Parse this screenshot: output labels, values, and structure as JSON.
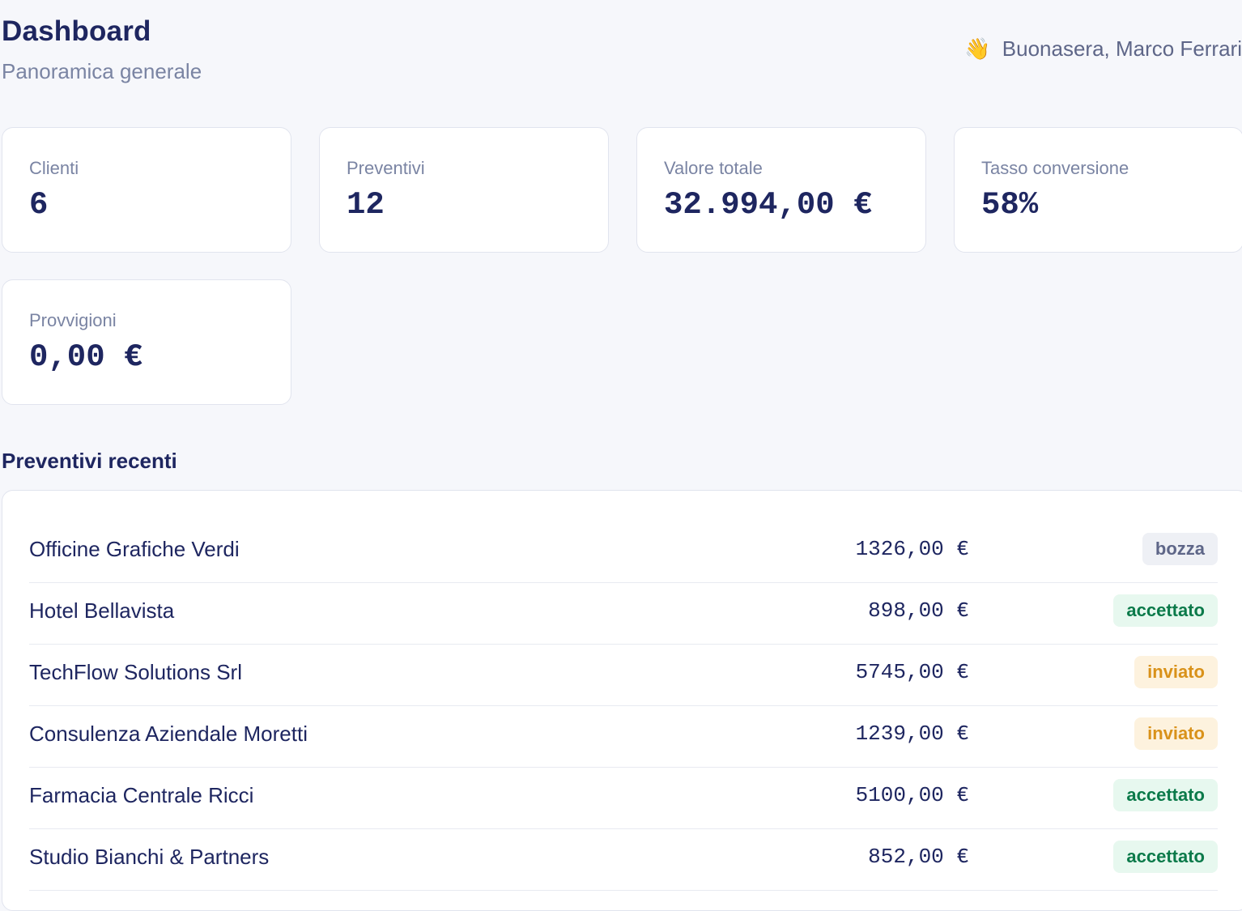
{
  "header": {
    "title": "Dashboard",
    "subtitle": "Panoramica generale",
    "greeting_icon": "👋",
    "greeting": "Buonasera, Marco Ferrari"
  },
  "stats": [
    {
      "label": "Clienti",
      "value": "6"
    },
    {
      "label": "Preventivi",
      "value": "12"
    },
    {
      "label": "Valore totale",
      "value": "32.994,00 €"
    },
    {
      "label": "Tasso conversione",
      "value": "58%"
    },
    {
      "label": "Provvigioni",
      "value": "0,00 €"
    }
  ],
  "recent": {
    "title": "Preventivi recenti",
    "rows": [
      {
        "client": "Officine Grafiche Verdi",
        "amount": "1326,00 €",
        "status": "bozza"
      },
      {
        "client": "Hotel Bellavista",
        "amount": "898,00 €",
        "status": "accettato"
      },
      {
        "client": "TechFlow Solutions Srl",
        "amount": "5745,00 €",
        "status": "inviato"
      },
      {
        "client": "Consulenza Aziendale Moretti",
        "amount": "1239,00 €",
        "status": "inviato"
      },
      {
        "client": "Farmacia Centrale Ricci",
        "amount": "5100,00 €",
        "status": "accettato"
      },
      {
        "client": "Studio Bianchi & Partners",
        "amount": "852,00 €",
        "status": "accettato"
      }
    ]
  },
  "colors": {
    "background": "#f6f7fb",
    "text_primary": "#1e2660",
    "text_muted": "#7a84a3",
    "status_bozza_bg": "#eef0f5",
    "status_bozza_fg": "#5e6688",
    "status_accettato_bg": "#e7f8ef",
    "status_accettato_fg": "#0b7a4a",
    "status_inviato_bg": "#fdf2de",
    "status_inviato_fg": "#d9921a"
  }
}
